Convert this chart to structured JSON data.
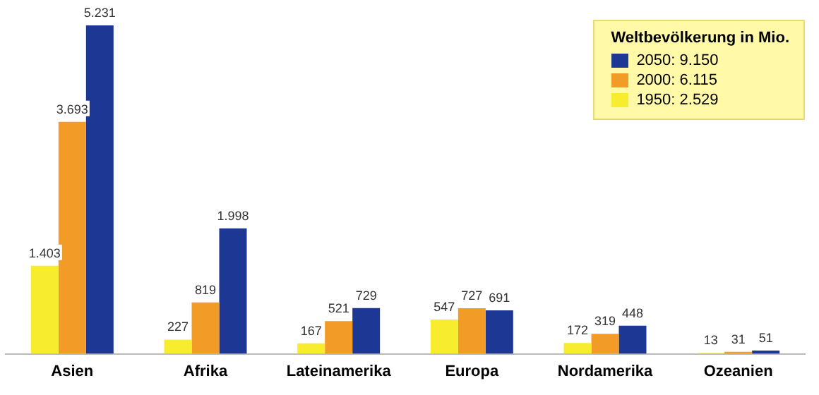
{
  "chart_data": {
    "type": "bar",
    "categories": [
      "Asien",
      "Afrika",
      "Lateinamerika",
      "Europa",
      "Nordamerika",
      "Ozeanien"
    ],
    "legend_title": "Weltbevölkerung in Mio.",
    "legend": "top right",
    "grid": false,
    "series": [
      {
        "name": "1950: 2.529",
        "color": "#f8ec2e",
        "values": [
          1403,
          227,
          167,
          547,
          172,
          13
        ],
        "value_labels": [
          "1.403",
          "227",
          "167",
          "547",
          "172",
          "13"
        ]
      },
      {
        "name": "2000: 6.115",
        "color": "#f29b26",
        "values": [
          3693,
          819,
          521,
          727,
          319,
          31
        ],
        "value_labels": [
          "3.693",
          "819",
          "521",
          "727",
          "319",
          "31"
        ]
      },
      {
        "name": "2050: 9.150",
        "color": "#1c3894",
        "values": [
          5231,
          1998,
          729,
          691,
          448,
          51
        ],
        "value_labels": [
          "5.231",
          "1.998",
          "729",
          "691",
          "448",
          "51"
        ]
      }
    ]
  }
}
